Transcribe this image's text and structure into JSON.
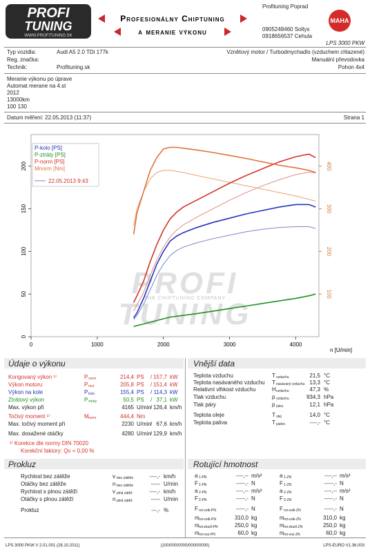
{
  "header": {
    "logo_top": "PROFI",
    "logo_bottom": "TUNING",
    "logo_url": "WWW.PROFITUNING.SK",
    "title1": "Profesionálny Chiptuning",
    "title2": "a meranie výkonu",
    "company": "Profituning Poprad",
    "phone1": "0905248460 Soltys",
    "phone2": "0918656537 Cehula",
    "device": "LPS 3000 PKW",
    "brand": "MAHA"
  },
  "vehicle": {
    "type_label": "Typ vozidla:",
    "type": "Audi A5 2.0 TDi 177k",
    "reg_label": "Reg. značka:",
    "tech_label": "Technik:",
    "tech": "Profituning.sk",
    "engine": "Vznětový motor / Turbodmychadlo (vzduchem chlazené)",
    "gearbox": "Manuální převodovka",
    "drive": "Pohon 4x4"
  },
  "notes": [
    "Meranie výkonu po úprave",
    "Automat merane na 4.st",
    "2012",
    "13000km",
    "100   130"
  ],
  "date": {
    "text": "Datum měření: 22.05.2013 (11:37)",
    "page": "Strana 1"
  },
  "watermark": {
    "top": "PROFI",
    "middle": "THE CHIPTUNING COMPANY",
    "bottom": "TUNING"
  },
  "chart_data": {
    "type": "line",
    "xlabel": "n [U/min]",
    "x": [
      1550,
      1600,
      1700,
      1800,
      1900,
      2000,
      2100,
      2200,
      2300,
      2500,
      2750,
      3000,
      3250,
      3500,
      3750,
      4000,
      4200,
      4300
    ],
    "xlim": [
      0,
      4350
    ],
    "xticks": [
      0,
      1000,
      2000,
      3000,
      4000
    ],
    "ylim": [
      0,
      237
    ],
    "yticks": [
      0,
      50,
      100,
      150,
      200
    ],
    "y2lim": [
      0,
      474
    ],
    "y2ticks": [
      100,
      200,
      300,
      400
    ],
    "y2color": "#d9772f",
    "grid": false,
    "series": [
      {
        "name": "P-kolo [PS]",
        "color": "#2233bb",
        "values": [
          22,
          28,
          45,
          65,
          85,
          100,
          112,
          118,
          122,
          128,
          134,
          139,
          144,
          148,
          152,
          155,
          155,
          152
        ]
      },
      {
        "name": "P-ztráty [PS]",
        "color": "#1f8f1f",
        "values": [
          12,
          13,
          15,
          17,
          19,
          21,
          23,
          24,
          25,
          27,
          30,
          33,
          36,
          39,
          42,
          45,
          48,
          50
        ]
      },
      {
        "name": "P-norm [PS]",
        "color": "#d2302a",
        "values": [
          40,
          48,
          65,
          88,
          108,
          125,
          138,
          146,
          152,
          160,
          170,
          180,
          189,
          197,
          205,
          211,
          214,
          210
        ]
      },
      {
        "name": "Mnorm [Nm]",
        "color": "#e0703a",
        "axis": "y2",
        "values": [
          240,
          290,
          340,
          390,
          420,
          440,
          444,
          444,
          442,
          438,
          432,
          425,
          418,
          410,
          402,
          396,
          390,
          385
        ]
      }
    ],
    "comparison": {
      "name": "22.05.2013 9:43",
      "color": "#d2302a",
      "series": [
        {
          "color": "#7a84c8",
          "values": [
            20,
            25,
            38,
            55,
            72,
            85,
            95,
            101,
            105,
            110,
            115,
            119,
            123,
            126,
            128,
            129,
            129,
            127
          ]
        },
        {
          "color": "#e08a80",
          "values": [
            30,
            37,
            52,
            72,
            90,
            105,
            117,
            125,
            131,
            140,
            150,
            160,
            169,
            177,
            184,
            190,
            193,
            192
          ]
        },
        {
          "color": "#eaa070",
          "axis": "y2",
          "values": [
            260,
            300,
            340,
            370,
            385,
            390,
            390,
            388,
            385,
            378,
            370,
            362,
            354,
            346,
            338,
            330,
            322,
            318
          ]
        }
      ]
    }
  },
  "performance": {
    "title": "Údaje o výkonu",
    "rows": [
      {
        "label": "Korigovaný výkon ¹⁾",
        "color": "#d2302a",
        "sym": "P",
        "sub": "norm",
        "v1": "214,4",
        "u1": "PS",
        "sep": "/",
        "v2": "157,7",
        "u2": "kW"
      },
      {
        "label": "Výkon motoru",
        "color": "#d2302a",
        "sym": "P",
        "sub": "mot",
        "v1": "205,8",
        "u1": "PS",
        "sep": "/",
        "v2": "151,4",
        "u2": "kW"
      },
      {
        "label": "Výkon na kole",
        "color": "#2233bb",
        "sym": "P",
        "sub": "kolo",
        "v1": "155,4",
        "u1": "PS",
        "sep": "/",
        "v2": "114,3",
        "u2": "kW"
      },
      {
        "label": "Ztrátový výkon",
        "color": "#1f8f1f",
        "sym": "P",
        "sub": "ztráty",
        "v1": "50,5",
        "u1": "PS",
        "sep": "/",
        "v2": "37,1",
        "u2": "kW"
      },
      {
        "label": "Max. výkon při",
        "color": "#222222",
        "v1": "4165",
        "u1": "U/min",
        "sep": "/",
        "v2": "126,4",
        "u2": "km/h"
      },
      {
        "label": "Točivý moment ¹⁾",
        "color": "#d2302a",
        "sym": "M",
        "sub": "norm",
        "v1": "444,4",
        "u1": "Nm"
      },
      {
        "label": "Max. točivý moment při",
        "color": "#222222",
        "v1": "2230",
        "u1": "U/min",
        "sep": "/",
        "v2": "67,6",
        "u2": "km/h"
      },
      {
        "label": "Max. dosažené otáčky",
        "color": "#222222",
        "v1": "4280",
        "u1": "U/min",
        "sep": "/",
        "v2": "129,9",
        "u2": "km/h"
      }
    ],
    "note1": "¹⁾ Korekce dle normy DIN 70020",
    "note2": "Korekční faktory: Qv =  0,00 %"
  },
  "external": {
    "title": "Vnější data",
    "rows": [
      {
        "label": "Teplota vzduchu",
        "sym": "T",
        "sub": "vzduchu",
        "v": "21,5",
        "u": "°C"
      },
      {
        "label": "Teplota nasávaného vzduchu",
        "sym": "T",
        "sub": "nasávaný vzduchu",
        "v": "13,3",
        "u": "°C"
      },
      {
        "label": "Relativní vlhkost vzduchu",
        "sym": "H",
        "sub": "vzduchu",
        "v": "47,3",
        "u": "%"
      },
      {
        "label": "Tlak vzduchu",
        "sym": "p",
        "sub": "vzduchu",
        "v": "934,3",
        "u": "hPa"
      },
      {
        "label": "Tlak páry",
        "sym": "p",
        "sub": "pára",
        "v": "12,1",
        "u": "hPa"
      },
      {
        "label": "Teplota oleje",
        "sym": "T",
        "sub": "olej",
        "v": "14,0",
        "u": "°C"
      },
      {
        "label": "Teplota paliva",
        "sym": "T",
        "sub": "palivo",
        "v": "----,-",
        "u": "°C"
      }
    ]
  },
  "slip": {
    "title": "Prokluz",
    "rows": [
      {
        "label": "Rychlost bez zátěže",
        "sym": "v",
        "sub": "bez zátěže",
        "v": "----,-",
        "u": "km/h"
      },
      {
        "label": "Otáčky bez zátěže",
        "sym": "n",
        "sub": "bez zátěže",
        "v": "-----",
        "u": "U/min"
      },
      {
        "label": "Rychlost s plnou zátěží",
        "sym": "v",
        "sub": "plná zátěž",
        "v": "----,-",
        "u": "km/h"
      },
      {
        "label": "Otáčky s plnou zátěží",
        "sym": "n",
        "sub": "plná zátěž",
        "v": "-----",
        "u": "U/min"
      },
      {
        "label": "Prokluz",
        "v": "---,-",
        "u": "%"
      }
    ]
  },
  "rotating": {
    "title": "Rotující hmotnost",
    "rows": [
      [
        {
          "sym": "a",
          "sub": "1-PN",
          "v": "----,--",
          "u": "m/s²"
        },
        {
          "sym": "a",
          "sub": "1-ZN",
          "v": "----,--",
          "u": "m/s²"
        }
      ],
      [
        {
          "sym": "F",
          "sub": "1-PN",
          "v": "-----,-",
          "u": "N"
        },
        {
          "sym": "F",
          "sub": "1-ZN",
          "v": "-----,-",
          "u": "N"
        }
      ],
      [
        {
          "sym": "a",
          "sub": "2-PN",
          "v": "----,--",
          "u": "m/s²"
        },
        {
          "sym": "a",
          "sub": "2-ZN",
          "v": "----,--",
          "u": "m/s²"
        }
      ],
      [
        {
          "sym": "F",
          "sub": "2-PN",
          "v": "-----,-",
          "u": "N"
        },
        {
          "sym": "F",
          "sub": "2-ZN",
          "v": "-----,-",
          "u": "N"
        }
      ],
      [
        {
          "sym": "F",
          "sub": "rot-celk-PN",
          "v": "-----,-",
          "u": "N"
        },
        {
          "sym": "F",
          "sub": "rot-celk-ZN",
          "v": "-----,-",
          "u": "N"
        }
      ],
      [
        {
          "sym": "m",
          "sub": "rot-celk-PN",
          "v": "310,0",
          "u": "kg"
        },
        {
          "sym": "m",
          "sub": "rot-celk-ZN",
          "v": "310,0",
          "u": "kg"
        }
      ],
      [
        {
          "sym": "m",
          "sub": "rot-zkušl-PN",
          "v": "250,0",
          "u": "kg"
        },
        {
          "sym": "m",
          "sub": "rot-zkušl-ZN",
          "v": "250,0",
          "u": "kg"
        }
      ],
      [
        {
          "sym": "m",
          "sub": "rot-voz-PN",
          "v": "60,0",
          "u": "kg"
        },
        {
          "sym": "m",
          "sub": "rot-voz-ZN",
          "v": "60,0",
          "u": "kg"
        }
      ]
    ]
  },
  "footer": {
    "left": "LPS 3000 PKW V 2.01.001 (28.10.2011)",
    "middle": "(100/000/0000/0000/0000)",
    "right": "LPS-EURO V1.36.003"
  }
}
